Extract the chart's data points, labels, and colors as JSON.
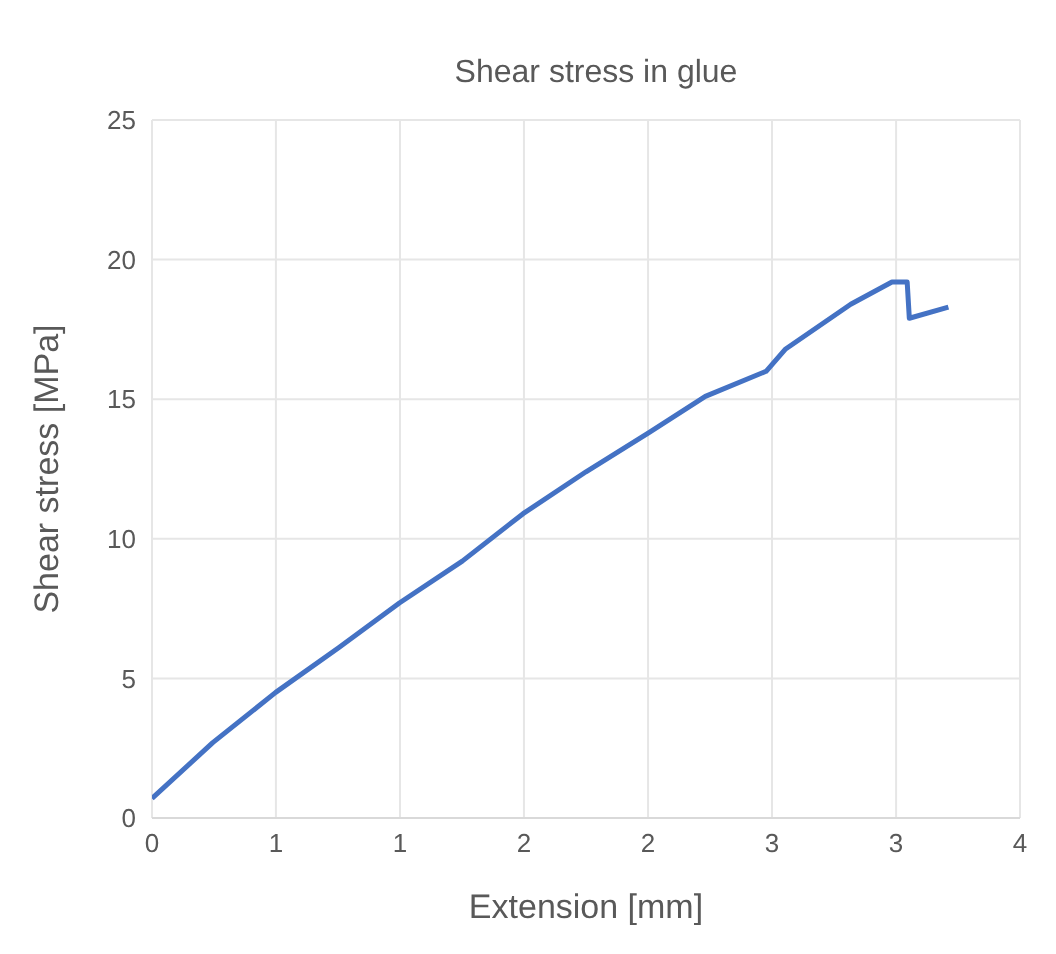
{
  "chart_data": {
    "type": "line",
    "title": "Shear stress in glue",
    "xlabel": "Extension [mm]",
    "ylabel": "Shear stress [MPa]",
    "x": [
      0,
      0.28,
      0.57,
      0.86,
      1.14,
      1.43,
      1.71,
      2.0,
      2.29,
      2.55,
      2.83,
      2.92,
      3.22,
      3.41,
      3.48,
      3.49,
      3.67
    ],
    "series": [
      {
        "color": "#4472c4",
        "values": [
          0.7,
          2.7,
          4.5,
          6.1,
          7.7,
          9.2,
          10.9,
          12.4,
          13.8,
          15.1,
          16.0,
          16.8,
          18.4,
          19.2,
          19.2,
          17.9,
          18.3
        ]
      }
    ],
    "xlim": [
      0,
      4
    ],
    "xticks": [
      0,
      {
        "value": 0.571,
        "label": "1"
      },
      {
        "value": 1.143,
        "label": "1"
      },
      {
        "value": 1.714,
        "label": "2"
      },
      {
        "value": 2.286,
        "label": "2"
      },
      {
        "value": 2.857,
        "label": "3"
      },
      {
        "value": 3.429,
        "label": "3"
      },
      4
    ],
    "ylim": [
      0,
      25
    ],
    "yticks": [
      0,
      5,
      10,
      15,
      20,
      25
    ],
    "grid": true,
    "marker": "none",
    "line_style": "solid"
  }
}
